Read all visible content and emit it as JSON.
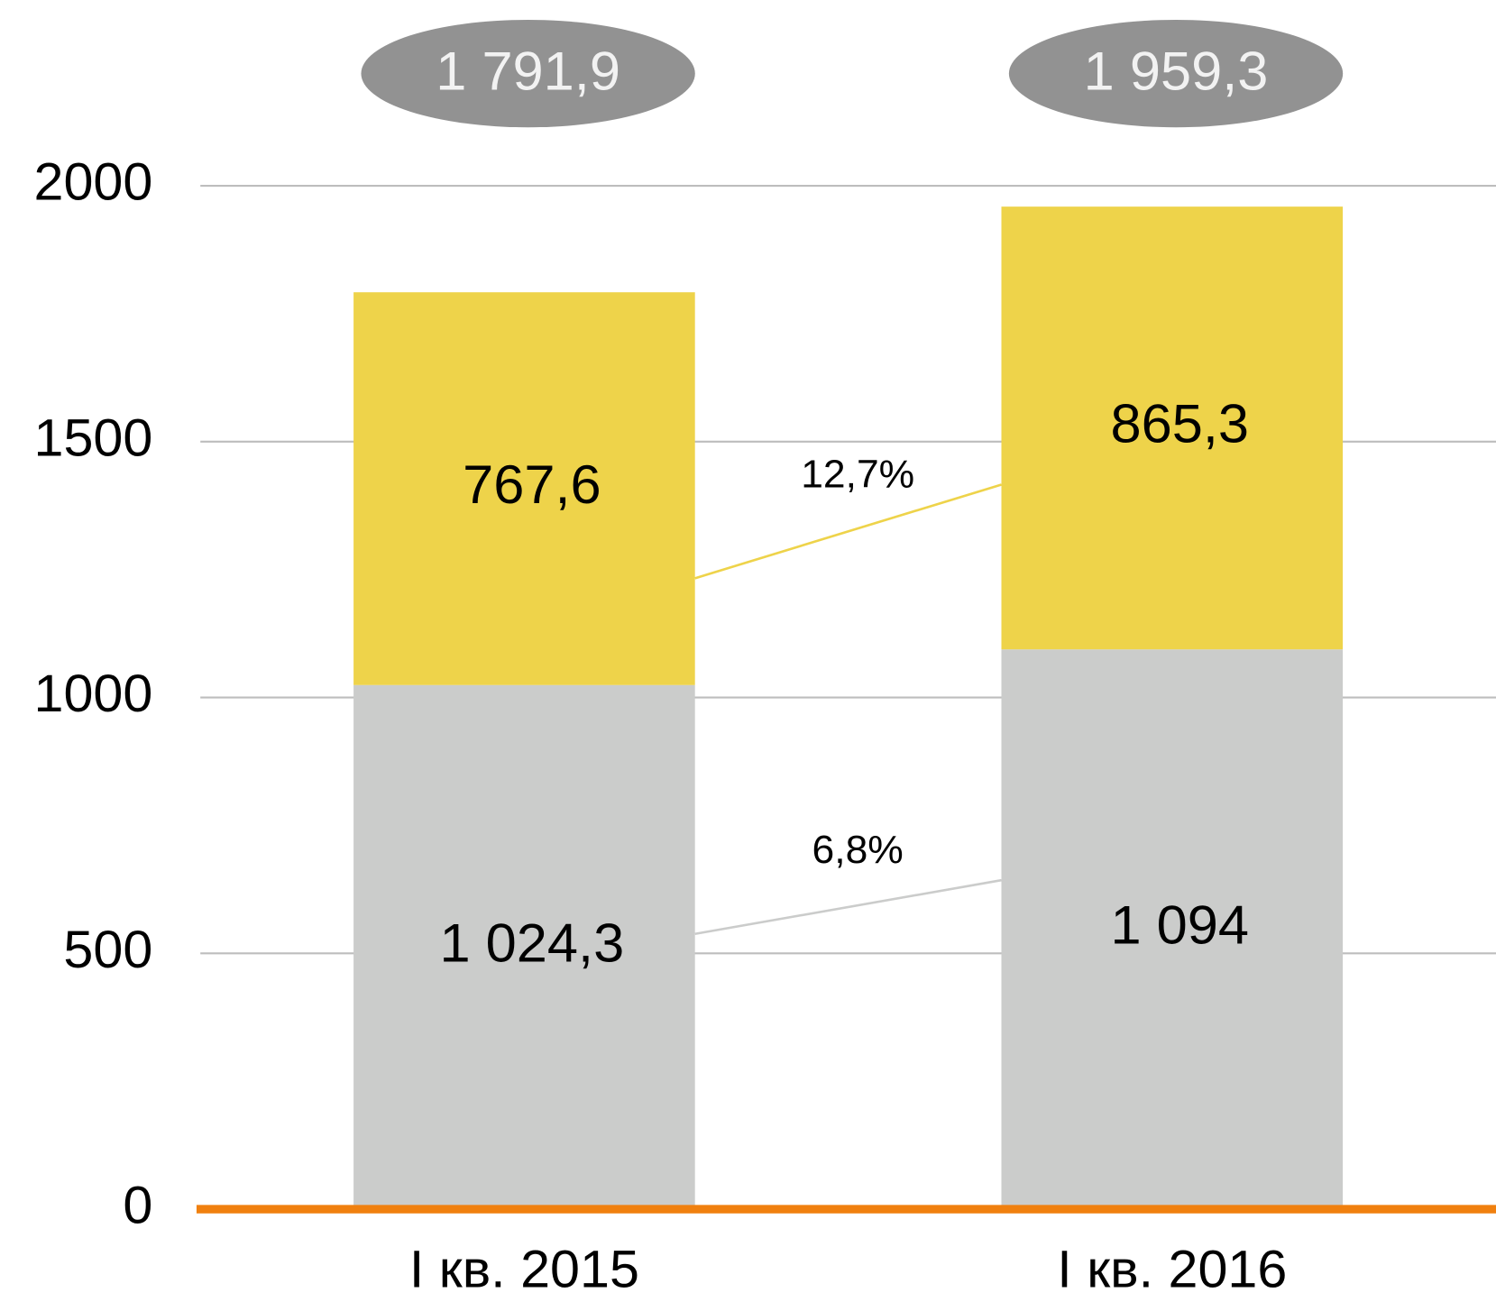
{
  "chart_data": {
    "type": "stacked_bar",
    "categories": [
      "I кв. 2015",
      "I кв. 2016"
    ],
    "series": [
      {
        "color": "#cbcccb",
        "values": [
          1024.3,
          1094
        ],
        "value_labels": [
          "1 024,3",
          "1 094"
        ]
      },
      {
        "color": "#eed34a",
        "values": [
          767.6,
          865.3
        ],
        "value_labels": [
          "767,6",
          "865,3"
        ]
      }
    ],
    "totals": [
      1791.9,
      1959.3
    ],
    "total_labels": [
      "1 791,9",
      "1 959,3"
    ],
    "annotations": [
      "6,8%",
      "12,7%"
    ],
    "ylim": [
      0,
      2000
    ],
    "yticks": [
      0,
      500,
      1000,
      1500,
      2000
    ],
    "grid": true,
    "axis_color": "#f0800f",
    "total_color": "#929292"
  }
}
